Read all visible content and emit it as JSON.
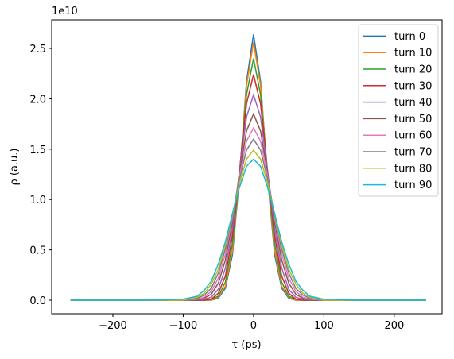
{
  "chart_data": {
    "type": "line",
    "x_label": "τ (ps)",
    "y_label": "ρ (a.u.)",
    "y_offset_label": "1e10",
    "legend": "upper right",
    "grid": false,
    "xlim": [
      -287,
      268
    ],
    "ylim": [
      -0.134,
      2.784
    ],
    "xticks": [
      {
        "value": -200,
        "label": "−200"
      },
      {
        "value": -100,
        "label": "−100"
      },
      0,
      100,
      200
    ],
    "yticks": [
      {
        "value": 0,
        "label": "0.0"
      },
      0.5,
      {
        "value": 1,
        "label": "1.0"
      },
      1.5,
      {
        "value": 2,
        "label": "2.0"
      },
      2.5
    ],
    "x": [
      -260,
      -200,
      -150,
      -100,
      -80,
      -70,
      -60,
      -50,
      -40,
      -30,
      -20,
      -10,
      0,
      10,
      20,
      30,
      40,
      50,
      60,
      70,
      80,
      100,
      150,
      200,
      245
    ],
    "series": [
      {
        "name": "turn 0",
        "color": "#1f77b4",
        "values": [
          0,
          0,
          0,
          0,
          0,
          0,
          0,
          0.02,
          0.12,
          0.45,
          1.21,
          2.17,
          2.64,
          2.17,
          1.21,
          0.45,
          0.12,
          0.02,
          0,
          0,
          0,
          0,
          0,
          0,
          0
        ]
      },
      {
        "name": "turn 10",
        "color": "#ff7f0e",
        "values": [
          0,
          0,
          0,
          0,
          0,
          0,
          0,
          0.03,
          0.14,
          0.49,
          1.23,
          2.13,
          2.56,
          2.13,
          1.23,
          0.49,
          0.14,
          0.03,
          0,
          0,
          0,
          0,
          0,
          0,
          0
        ]
      },
      {
        "name": "turn 20",
        "color": "#2ca02c",
        "values": [
          0,
          0,
          0,
          0,
          0,
          0,
          0.01,
          0.04,
          0.18,
          0.56,
          1.26,
          2.04,
          2.4,
          2.04,
          1.26,
          0.56,
          0.18,
          0.04,
          0.01,
          0,
          0,
          0,
          0,
          0,
          0
        ]
      },
      {
        "name": "turn 30",
        "color": "#d62728",
        "values": [
          0,
          0,
          0,
          0,
          0,
          0,
          0.01,
          0.07,
          0.24,
          0.64,
          1.28,
          1.95,
          2.24,
          1.95,
          1.28,
          0.64,
          0.24,
          0.07,
          0.01,
          0,
          0,
          0,
          0,
          0,
          0
        ]
      },
      {
        "name": "turn 40",
        "color": "#9467bd",
        "values": [
          0,
          0,
          0,
          0,
          0,
          0.01,
          0.03,
          0.11,
          0.32,
          0.71,
          1.28,
          1.82,
          2.04,
          1.82,
          1.28,
          0.71,
          0.32,
          0.11,
          0.03,
          0.01,
          0,
          0,
          0,
          0,
          0
        ]
      },
      {
        "name": "turn 50",
        "color": "#8c564b",
        "values": [
          0,
          0,
          0,
          0,
          0,
          0.02,
          0.06,
          0.17,
          0.4,
          0.78,
          1.26,
          1.68,
          1.85,
          1.68,
          1.26,
          0.78,
          0.4,
          0.17,
          0.06,
          0.02,
          0,
          0,
          0,
          0,
          0
        ]
      },
      {
        "name": "turn 60",
        "color": "#e377c2",
        "values": [
          0,
          0,
          0,
          0,
          0.01,
          0.03,
          0.09,
          0.22,
          0.46,
          0.82,
          1.23,
          1.58,
          1.71,
          1.58,
          1.23,
          0.82,
          0.46,
          0.22,
          0.09,
          0.03,
          0.01,
          0,
          0,
          0,
          0
        ]
      },
      {
        "name": "turn 70",
        "color": "#7f7f7f",
        "values": [
          0,
          0,
          0,
          0,
          0.02,
          0.05,
          0.12,
          0.27,
          0.51,
          0.84,
          1.2,
          1.49,
          1.6,
          1.49,
          1.2,
          0.84,
          0.51,
          0.27,
          0.12,
          0.05,
          0.02,
          0,
          0,
          0,
          0
        ]
      },
      {
        "name": "turn 80",
        "color": "#bcbd22",
        "values": [
          0,
          0,
          0,
          0,
          0.03,
          0.07,
          0.16,
          0.31,
          0.55,
          0.85,
          1.16,
          1.4,
          1.49,
          1.4,
          1.16,
          0.85,
          0.55,
          0.31,
          0.16,
          0.07,
          0.03,
          0,
          0,
          0,
          0
        ]
      },
      {
        "name": "turn 90",
        "color": "#17becf",
        "values": [
          0,
          0,
          0,
          0.01,
          0.04,
          0.1,
          0.19,
          0.36,
          0.58,
          0.86,
          1.12,
          1.33,
          1.4,
          1.33,
          1.12,
          0.86,
          0.58,
          0.36,
          0.19,
          0.1,
          0.04,
          0.01,
          0,
          0,
          0
        ]
      }
    ]
  }
}
